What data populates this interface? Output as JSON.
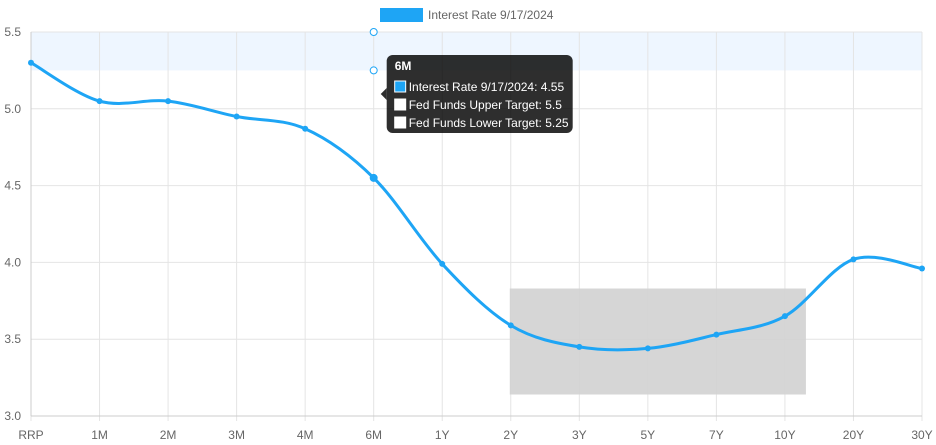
{
  "chart_data": {
    "type": "line",
    "categories": [
      "RRP",
      "1M",
      "2M",
      "3M",
      "4M",
      "6M",
      "1Y",
      "2Y",
      "3Y",
      "5Y",
      "7Y",
      "10Y",
      "20Y",
      "30Y"
    ],
    "series": [
      {
        "name": "Interest Rate 9/17/2024",
        "values": [
          5.3,
          5.05,
          5.05,
          4.95,
          4.87,
          4.55,
          3.99,
          3.59,
          3.45,
          3.44,
          3.53,
          3.65,
          4.02,
          3.96
        ],
        "color": "#1ea5f5"
      }
    ],
    "fed_funds": {
      "upper": 5.5,
      "lower": 5.25,
      "band_color": "#eef6ff"
    },
    "ylim": [
      3.0,
      5.5
    ],
    "yticks": [
      "3.0",
      "3.5",
      "4.0",
      "4.5",
      "5.0",
      "5.5"
    ],
    "grid": true,
    "legend_position": "top",
    "highlight_range": [
      "2Y",
      "10Y"
    ],
    "highlight_color": "#d3d3d3",
    "tooltip": {
      "category": "6M",
      "title": "6M",
      "lines": [
        "Interest Rate 9/17/2024: 4.55",
        "Fed Funds Upper Target: 5.5",
        "Fed Funds Lower Target: 5.25"
      ]
    }
  }
}
